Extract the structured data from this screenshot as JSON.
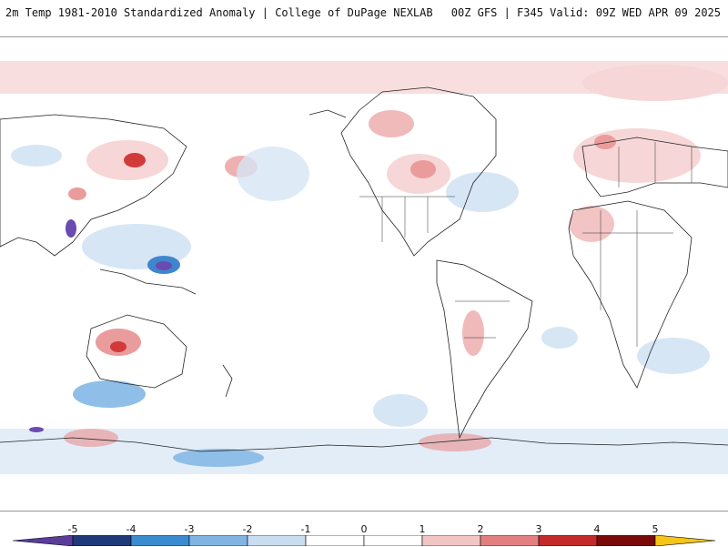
{
  "header": {
    "title": "2m Temp 1981-2010 Standardized Anomaly | College of DuPage NEXLAB",
    "run_info": "00Z GFS | F345 Valid: 09Z WED APR 09 2025"
  },
  "colorbar": {
    "ticks": [
      "-5",
      "-4",
      "-3",
      "-2",
      "-1",
      "0",
      "1",
      "2",
      "3",
      "4",
      "5"
    ],
    "colors": [
      "#5a3d9a",
      "#1f3a78",
      "#3a8bd0",
      "#7fb4e3",
      "#c9ddf1",
      "#ffffff",
      "#ffffff",
      "#f2c5c5",
      "#e47f7f",
      "#c52a2a",
      "#7a0a0a",
      "#f5c518"
    ]
  },
  "palette": {
    "cold_light": "#d6e6f5",
    "cold_mid": "#8fbfe8",
    "cold_strong": "#3f86cf",
    "cold_extreme": "#6a4bb0",
    "warm_light": "#f6d6d6",
    "warm_mid": "#ea9c9c",
    "warm_strong": "#d23a3a",
    "warm_extreme": "#8b0f0f",
    "coast": "#222222"
  }
}
